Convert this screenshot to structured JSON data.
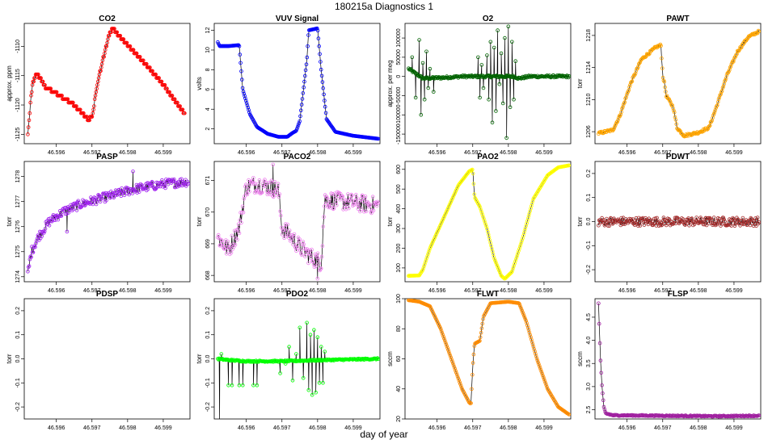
{
  "figure": {
    "title": "180215a   Diagnostics 1",
    "xlabel": "day of year"
  },
  "chart_data": [
    {
      "type": "line",
      "title": "CO2",
      "ylabel": "approx. ppm",
      "color": "#ff0000",
      "xlim": [
        46.5951,
        46.59975
      ],
      "xticks": [
        46.596,
        46.597,
        46.598,
        46.599
      ],
      "ylim": [
        -1126.6,
        -1106.1
      ],
      "yticks": [
        -1125,
        -1120,
        -1115,
        -1110
      ],
      "ytick_labels": [
        "-1125",
        "-1120",
        "-1115",
        "-1110"
      ],
      "profile": [
        [
          46.5952,
          -1125.2
        ],
        [
          46.59525,
          -1121.5
        ],
        [
          46.5953,
          -1118
        ],
        [
          46.59535,
          -1116
        ],
        [
          46.59542,
          -1115
        ],
        [
          46.5955,
          -1115
        ],
        [
          46.5957,
          -1117
        ],
        [
          46.596,
          -1118
        ],
        [
          46.5965,
          -1120
        ],
        [
          46.5969,
          -1122.5
        ],
        [
          46.597,
          -1122
        ],
        [
          46.5972,
          -1115
        ],
        [
          46.5975,
          -1107.5
        ],
        [
          46.5976,
          -1107
        ],
        [
          46.5978,
          -1108.5
        ],
        [
          46.5985,
          -1113
        ],
        [
          46.599,
          -1116.5
        ],
        [
          46.5996,
          -1121.5
        ]
      ],
      "noise": 0,
      "step": 0.6,
      "mode": "steps"
    },
    {
      "type": "line",
      "title": "VUV Signal",
      "ylabel": "volts",
      "color": "#0000ff",
      "xlim": [
        46.5951,
        46.59975
      ],
      "xticks": [
        46.596,
        46.597,
        46.598,
        46.599
      ],
      "ylim": [
        0.5,
        12.7
      ],
      "yticks": [
        2,
        4,
        6,
        8,
        10,
        12
      ],
      "ytick_labels": [
        "2",
        "4",
        "6",
        "8",
        "10",
        "12"
      ],
      "profile": [
        [
          46.5952,
          10.8
        ],
        [
          46.59525,
          10.4
        ],
        [
          46.5955,
          10.4
        ],
        [
          46.5958,
          10.5
        ],
        [
          46.5959,
          6
        ],
        [
          46.5961,
          3.5
        ],
        [
          46.5963,
          2.2
        ],
        [
          46.5966,
          1.5
        ],
        [
          46.5969,
          1.2
        ],
        [
          46.59715,
          1.2
        ],
        [
          46.5973,
          1.6
        ],
        [
          46.5974,
          1.8
        ],
        [
          46.5975,
          2.8
        ],
        [
          46.5977,
          9
        ],
        [
          46.59775,
          12
        ],
        [
          46.598,
          12.2
        ],
        [
          46.5981,
          8
        ],
        [
          46.59825,
          3
        ],
        [
          46.5985,
          1.7
        ],
        [
          46.599,
          1.3
        ],
        [
          46.5997,
          1.0
        ]
      ],
      "noise": 0,
      "mode": "line"
    },
    {
      "type": "line",
      "title": "O2",
      "ylabel": "approx. per meg",
      "color": "#006400",
      "xlim": [
        46.5951,
        46.59975
      ],
      "xticks": [
        46.596,
        46.597,
        46.598,
        46.599
      ],
      "ylim": [
        -175000,
        138000
      ],
      "yticks": [
        -150000,
        -100000,
        -50000,
        0,
        50000,
        100000
      ],
      "ytick_labels": [
        "-150000",
        "-100000",
        "-50000",
        "0",
        "50000",
        "100000"
      ],
      "profile": [
        [
          46.5952,
          20000
        ],
        [
          46.5956,
          -5000
        ],
        [
          46.5962,
          -3000
        ],
        [
          46.5967,
          0
        ],
        [
          46.5975,
          0
        ],
        [
          46.5978,
          0
        ],
        [
          46.59815,
          0
        ],
        [
          46.5983,
          -5000
        ],
        [
          46.5986,
          0
        ],
        [
          46.5997,
          0
        ]
      ],
      "noise": 3000,
      "spikes": [
        [
          46.5953,
          50000
        ],
        [
          46.5954,
          -55000
        ],
        [
          46.5955,
          95000
        ],
        [
          46.59555,
          -100000
        ],
        [
          46.5956,
          35000
        ],
        [
          46.59565,
          -60000
        ],
        [
          46.5957,
          65000
        ],
        [
          46.59575,
          -30000
        ],
        [
          46.5958,
          20000
        ],
        [
          46.5959,
          -40000
        ],
        [
          46.59715,
          50000
        ],
        [
          46.5972,
          -55000
        ],
        [
          46.59725,
          30000
        ],
        [
          46.5973,
          -30000
        ],
        [
          46.5974,
          55000
        ],
        [
          46.59745,
          -60000
        ],
        [
          46.5975,
          90000
        ],
        [
          46.59755,
          -120000
        ],
        [
          46.5976,
          75000
        ],
        [
          46.59765,
          -90000
        ],
        [
          46.5977,
          120000
        ],
        [
          46.59775,
          -20000
        ],
        [
          46.5978,
          60000
        ],
        [
          46.59785,
          -70000
        ],
        [
          46.5979,
          100000
        ],
        [
          46.59795,
          -160000
        ],
        [
          46.598,
          130000
        ],
        [
          46.59805,
          -80000
        ],
        [
          46.5981,
          90000
        ],
        [
          46.59815,
          -60000
        ],
        [
          46.5982,
          40000
        ]
      ],
      "mode": "line"
    },
    {
      "type": "line",
      "title": "PAWT",
      "ylabel": "torr",
      "color": "#ffa500",
      "xlim": [
        46.5951,
        46.59975
      ],
      "xticks": [
        46.596,
        46.597,
        46.598,
        46.599
      ],
      "ylim": [
        1204.5,
        1219.5
      ],
      "yticks": [
        1206,
        1210,
        1214,
        1218
      ],
      "ytick_labels": [
        "1206",
        "1210",
        "1214",
        "1218"
      ],
      "profile": [
        [
          46.5952,
          1205.8
        ],
        [
          46.5956,
          1206.2
        ],
        [
          46.5958,
          1208
        ],
        [
          46.5961,
          1212
        ],
        [
          46.5964,
          1215
        ],
        [
          46.5968,
          1216.5
        ],
        [
          46.59695,
          1216.8
        ],
        [
          46.597,
          1213
        ],
        [
          46.59705,
          1212
        ],
        [
          46.5971,
          1210.5
        ],
        [
          46.5973,
          1209
        ],
        [
          46.5974,
          1206.5
        ],
        [
          46.5976,
          1205.5
        ],
        [
          46.598,
          1205.9
        ],
        [
          46.5983,
          1206.5
        ],
        [
          46.5985,
          1209
        ],
        [
          46.5988,
          1213
        ],
        [
          46.5991,
          1216
        ],
        [
          46.5994,
          1217.8
        ],
        [
          46.5997,
          1218.5
        ]
      ],
      "noise": 0.15,
      "mode": "line"
    },
    {
      "type": "line",
      "title": "PASP",
      "ylabel": "torr",
      "color": "#a020f0",
      "xlim": [
        46.5951,
        46.59975
      ],
      "xticks": [
        46.596,
        46.597,
        46.598,
        46.599
      ],
      "ylim": [
        1273.8,
        1278.6
      ],
      "yticks": [
        1274,
        1275,
        1276,
        1277,
        1278
      ],
      "ytick_labels": [
        "1274",
        "1275",
        "1276",
        "1277",
        "1278"
      ],
      "profile": [
        [
          46.5952,
          1274.1
        ],
        [
          46.5953,
          1275
        ],
        [
          46.5955,
          1275.6
        ],
        [
          46.5958,
          1276.2
        ],
        [
          46.5962,
          1276.6
        ],
        [
          46.5967,
          1276.9
        ],
        [
          46.5972,
          1277.1
        ],
        [
          46.5977,
          1277.3
        ],
        [
          46.5982,
          1277.5
        ],
        [
          46.599,
          1277.7
        ],
        [
          46.5997,
          1277.8
        ]
      ],
      "noise": 0.18,
      "spikes": [
        [
          46.59815,
          1278.2
        ],
        [
          46.5963,
          1275.8
        ]
      ],
      "mode": "line"
    },
    {
      "type": "line",
      "title": "PACO2",
      "ylabel": "torr",
      "color": "#ee82ee",
      "xlim": [
        46.5951,
        46.59975
      ],
      "xticks": [
        46.596,
        46.597,
        46.598,
        46.599
      ],
      "ylim": [
        667.8,
        671.6
      ],
      "yticks": [
        668,
        669,
        670,
        671
      ],
      "ytick_labels": [
        "668",
        "669",
        "670",
        "671"
      ],
      "profile": [
        [
          46.5952,
          669.2
        ],
        [
          46.5955,
          668.8
        ],
        [
          46.5958,
          669.5
        ],
        [
          46.596,
          670.8
        ],
        [
          46.5963,
          670.9
        ],
        [
          46.5966,
          670.8
        ],
        [
          46.5969,
          670.7
        ],
        [
          46.597,
          669.5
        ],
        [
          46.5972,
          669.3
        ],
        [
          46.5975,
          668.9
        ],
        [
          46.5978,
          668.6
        ],
        [
          46.5981,
          668.4
        ],
        [
          46.5982,
          670.4
        ],
        [
          46.599,
          670.3
        ],
        [
          46.5997,
          670.2
        ]
      ],
      "noise": 0.28,
      "spikes": [
        [
          46.59675,
          671.5
        ],
        [
          46.598,
          667.9
        ]
      ],
      "mode": "line"
    },
    {
      "type": "line",
      "title": "PAO2",
      "ylabel": "torr",
      "color": "#ffff00",
      "xlim": [
        46.5951,
        46.59975
      ],
      "xticks": [
        46.596,
        46.597,
        46.598,
        46.599
      ],
      "ylim": [
        30,
        640
      ],
      "yticks": [
        100,
        200,
        300,
        400,
        500,
        600
      ],
      "ytick_labels": [
        "100",
        "200",
        "300",
        "400",
        "500",
        "600"
      ],
      "profile": [
        [
          46.5952,
          60
        ],
        [
          46.5955,
          62
        ],
        [
          46.5956,
          90
        ],
        [
          46.5958,
          200
        ],
        [
          46.5962,
          360
        ],
        [
          46.5966,
          520
        ],
        [
          46.5969,
          590
        ],
        [
          46.597,
          600
        ],
        [
          46.59705,
          460
        ],
        [
          46.5972,
          410
        ],
        [
          46.5974,
          300
        ],
        [
          46.5976,
          150
        ],
        [
          46.5978,
          60
        ],
        [
          46.5979,
          45
        ],
        [
          46.5981,
          80
        ],
        [
          46.5984,
          250
        ],
        [
          46.5987,
          450
        ],
        [
          46.5991,
          570
        ],
        [
          46.5994,
          610
        ],
        [
          46.5997,
          620
        ]
      ],
      "noise": 0,
      "mode": "line"
    },
    {
      "type": "line",
      "title": "PDWT",
      "ylabel": "torr",
      "color": "#a52a2a",
      "xlim": [
        46.5951,
        46.59975
      ],
      "xticks": [
        46.596,
        46.597,
        46.598,
        46.599
      ],
      "ylim": [
        -0.25,
        0.25
      ],
      "yticks": [
        -0.2,
        -0.1,
        0.0,
        0.1,
        0.2
      ],
      "ytick_labels": [
        "-0.2",
        "-0.1",
        "0.0",
        "0.1",
        "0.2"
      ],
      "profile": [
        [
          46.5952,
          0.0
        ],
        [
          46.5997,
          0.0
        ]
      ],
      "noise": 0.018,
      "mode": "line"
    },
    {
      "type": "line",
      "title": "PDSP",
      "ylabel": "torr",
      "color": "#000000",
      "xlim": [
        46.5951,
        46.59975
      ],
      "xticks": [
        46.596,
        46.597,
        46.598,
        46.599
      ],
      "ylim": [
        -0.25,
        0.25
      ],
      "yticks": [
        -0.2,
        -0.1,
        0.0,
        0.1,
        0.2
      ],
      "ytick_labels": [
        "-0.2",
        "-0.1",
        "0.0",
        "0.1",
        "0.2"
      ],
      "profile": [],
      "noise": 0,
      "mode": "none"
    },
    {
      "type": "line",
      "title": "PDO2",
      "ylabel": "torr",
      "color": "#00ff00",
      "xlim": [
        46.5951,
        46.59975
      ],
      "xticks": [
        46.596,
        46.597,
        46.598,
        46.599
      ],
      "ylim": [
        -0.25,
        0.25
      ],
      "yticks": [
        -0.2,
        -0.1,
        0.0,
        0.1,
        0.2
      ],
      "ytick_labels": [
        "-0.2",
        "-0.1",
        "0.0",
        "0.1",
        "0.2"
      ],
      "profile": [
        [
          46.5952,
          0.0
        ],
        [
          46.5955,
          -0.005
        ],
        [
          46.596,
          -0.01
        ],
        [
          46.597,
          -0.01
        ],
        [
          46.5982,
          -0.005
        ],
        [
          46.5997,
          0.0
        ]
      ],
      "noise": 0.003,
      "spikes": [
        [
          46.59525,
          -0.26
        ],
        [
          46.5953,
          0.02
        ],
        [
          46.5955,
          -0.11
        ],
        [
          46.5956,
          -0.11
        ],
        [
          46.5958,
          -0.11
        ],
        [
          46.5959,
          -0.11
        ],
        [
          46.5962,
          -0.11
        ],
        [
          46.5963,
          -0.11
        ],
        [
          46.59695,
          -0.06
        ],
        [
          46.5971,
          -0.02
        ],
        [
          46.5972,
          0.05
        ],
        [
          46.5973,
          -0.09
        ],
        [
          46.5974,
          0.02
        ],
        [
          46.5975,
          0.13
        ],
        [
          46.5976,
          -0.08
        ],
        [
          46.5977,
          0.15
        ],
        [
          46.59775,
          -0.13
        ],
        [
          46.5978,
          0.1
        ],
        [
          46.59785,
          -0.15
        ],
        [
          46.5979,
          0.12
        ],
        [
          46.59795,
          -0.14
        ],
        [
          46.598,
          0.09
        ],
        [
          46.59805,
          -0.1
        ],
        [
          46.5981,
          0.05
        ],
        [
          46.59815,
          -0.1
        ],
        [
          46.5982,
          0.03
        ]
      ],
      "mode": "line"
    },
    {
      "type": "line",
      "title": "FLWT",
      "ylabel": "sccm",
      "color": "#ff8c00",
      "xlim": [
        46.5951,
        46.59975
      ],
      "xticks": [
        46.596,
        46.597,
        46.598,
        46.599
      ],
      "ylim": [
        20,
        100
      ],
      "yticks": [
        20,
        40,
        60,
        80,
        100
      ],
      "ytick_labels": [
        "20",
        "40",
        "60",
        "80",
        "100"
      ],
      "profile": [
        [
          46.5952,
          99
        ],
        [
          46.5955,
          98
        ],
        [
          46.5958,
          95
        ],
        [
          46.5961,
          80
        ],
        [
          46.5964,
          60
        ],
        [
          46.5967,
          40
        ],
        [
          46.5969,
          31
        ],
        [
          46.59695,
          30
        ],
        [
          46.597,
          55
        ],
        [
          46.59705,
          70
        ],
        [
          46.5972,
          72
        ],
        [
          46.5973,
          88
        ],
        [
          46.5975,
          97
        ],
        [
          46.598,
          98
        ],
        [
          46.5983,
          97
        ],
        [
          46.5985,
          85
        ],
        [
          46.5988,
          60
        ],
        [
          46.5991,
          40
        ],
        [
          46.5994,
          28
        ],
        [
          46.5997,
          23
        ]
      ],
      "noise": 0,
      "mode": "line"
    },
    {
      "type": "line",
      "title": "FLSP",
      "ylabel": "sccm",
      "color": "#a020a0",
      "xlim": [
        46.5951,
        46.59975
      ],
      "xticks": [
        46.596,
        46.597,
        46.598,
        46.599
      ],
      "ylim": [
        2.3,
        4.9
      ],
      "yticks": [
        2.5,
        3.0,
        3.5,
        4.0,
        4.5
      ],
      "ytick_labels": [
        "2.5",
        "3.0",
        "3.5",
        "4.0",
        "4.5"
      ],
      "profile": [
        [
          46.5952,
          4.8
        ],
        [
          46.59525,
          3.65
        ],
        [
          46.5953,
          2.95
        ],
        [
          46.59535,
          2.55
        ],
        [
          46.5954,
          2.42
        ],
        [
          46.5956,
          2.38
        ],
        [
          46.597,
          2.37
        ],
        [
          46.5985,
          2.36
        ],
        [
          46.5997,
          2.37
        ]
      ],
      "noise": 0.012,
      "mode": "line"
    }
  ]
}
